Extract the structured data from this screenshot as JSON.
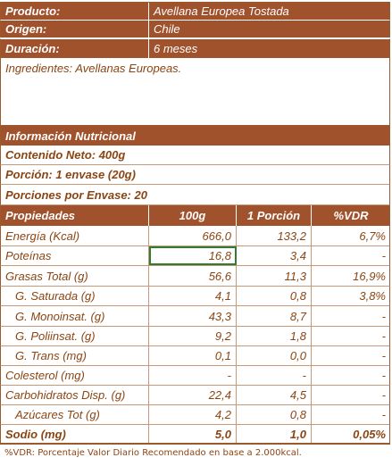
{
  "header": {
    "producto_label": "Producto:",
    "producto_value": "Avellana Europea Tostada",
    "origen_label": "Origen:",
    "origen_value": "Chile",
    "duracion_label": "Duración:",
    "duracion_value": "6 meses"
  },
  "ingredientes": "Ingredientes: Avellanas Europeas.",
  "info": {
    "title": "Información Nutricional",
    "contenido": "Contenido Neto: 400g",
    "porcion": "Porción: 1 envase (20g)",
    "porciones": "Porciones por Envase: 20"
  },
  "table": {
    "headers": [
      "Propiedades",
      "100g",
      "1 Porción",
      "%VDR"
    ],
    "rows": [
      {
        "name": "Energía (Kcal)",
        "g100": "666,0",
        "porcion": "133,2",
        "vdr": "6,7%"
      },
      {
        "name": "Poteínas",
        "g100": "16,8",
        "porcion": "3,4",
        "vdr": "-"
      },
      {
        "name": "Grasas Total (g)",
        "g100": "56,6",
        "porcion": "11,3",
        "vdr": "16,9%"
      },
      {
        "name": "G. Saturada (g)",
        "g100": "4,1",
        "porcion": "0,8",
        "vdr": "3,8%"
      },
      {
        "name": "G. Monoinsat. (g)",
        "g100": "43,3",
        "porcion": "8,7",
        "vdr": "-"
      },
      {
        "name": "G. Poliinsat. (g)",
        "g100": "9,2",
        "porcion": "1,8",
        "vdr": "-"
      },
      {
        "name": "G. Trans (mg)",
        "g100": "0,1",
        "porcion": "0,0",
        "vdr": "-"
      },
      {
        "name": "Colesterol (mg)",
        "g100": "-",
        "porcion": "-",
        "vdr": "-"
      },
      {
        "name": "Carbohidratos Disp. (g)",
        "g100": "22,4",
        "porcion": "4,5",
        "vdr": "-"
      },
      {
        "name": "Azúcares Tot (g)",
        "g100": "4,2",
        "porcion": "0,8",
        "vdr": "-"
      }
    ],
    "sodio": {
      "name": "Sodio (mg)",
      "g100": "5,0",
      "porcion": "1,0",
      "vdr": "0,05%"
    }
  },
  "footnote": "%VDR: Porcentaje Valor Diario Recomendado en base a 2.000kcal."
}
